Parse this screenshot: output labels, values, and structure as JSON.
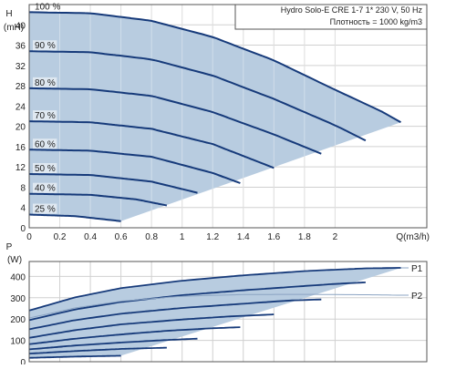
{
  "chart_data": [
    {
      "type": "line",
      "info": {
        "line1": "Hydro Solo-E CRE 1-7    1* 230 V, 50 Hz",
        "line2": "Плотность = 1000 kg/m3"
      },
      "ylabel_top": "H",
      "ylabel_unit": "(mH)",
      "xlabel": "Q(m3/h)",
      "xlim": [
        0,
        2.6
      ],
      "ylim": [
        0,
        44
      ],
      "x_ticks": [
        {
          "v": 0,
          "label": "0"
        },
        {
          "v": 0.2,
          "label": "0.2"
        },
        {
          "v": 0.4,
          "label": "0.4"
        },
        {
          "v": 0.6,
          "label": "0.6"
        },
        {
          "v": 0.8,
          "label": "0.8"
        },
        {
          "v": 1,
          "label": "1"
        },
        {
          "v": 1.2,
          "label": "1.2"
        },
        {
          "v": 1.4,
          "label": "1.4"
        },
        {
          "v": 1.6,
          "label": "1.6"
        },
        {
          "v": 1.8,
          "label": "1.8"
        },
        {
          "v": 2,
          "label": "2"
        }
      ],
      "y_ticks": [
        {
          "v": 0,
          "label": "0"
        },
        {
          "v": 4,
          "label": "4"
        },
        {
          "v": 8,
          "label": "8"
        },
        {
          "v": 12,
          "label": "12"
        },
        {
          "v": 16,
          "label": "16"
        },
        {
          "v": 20,
          "label": "20"
        },
        {
          "v": 24,
          "label": "24"
        },
        {
          "v": 28,
          "label": "28"
        },
        {
          "v": 32,
          "label": "32"
        },
        {
          "v": 36,
          "label": "36"
        },
        {
          "v": 40,
          "label": "40"
        }
      ],
      "grid": true,
      "series": [
        {
          "name": "100 %",
          "x": [
            0,
            0.4,
            0.8,
            1.2,
            1.6,
            2.0,
            2.3,
            2.43
          ],
          "y": [
            42.5,
            42.3,
            40.8,
            37.6,
            33.0,
            27.2,
            23.0,
            20.8
          ]
        },
        {
          "name": "90 %",
          "x": [
            0,
            0.4,
            0.8,
            1.2,
            1.6,
            2.0,
            2.2
          ],
          "y": [
            34.8,
            34.6,
            33.2,
            30.0,
            25.4,
            20.2,
            17.2
          ]
        },
        {
          "name": "80 %",
          "x": [
            0,
            0.4,
            0.8,
            1.2,
            1.6,
            1.91
          ],
          "y": [
            27.5,
            27.3,
            26.0,
            22.8,
            18.4,
            14.6
          ]
        },
        {
          "name": "70 %",
          "x": [
            0,
            0.4,
            0.8,
            1.2,
            1.6
          ],
          "y": [
            21.0,
            20.8,
            19.5,
            16.5,
            11.8
          ]
        },
        {
          "name": "60 %",
          "x": [
            0,
            0.4,
            0.8,
            1.2,
            1.38
          ],
          "y": [
            15.4,
            15.2,
            14.0,
            10.8,
            8.8
          ]
        },
        {
          "name": "50 %",
          "x": [
            0,
            0.4,
            0.8,
            1.1
          ],
          "y": [
            10.6,
            10.4,
            9.1,
            6.9
          ]
        },
        {
          "name": "40 %",
          "x": [
            0,
            0.4,
            0.7,
            0.9
          ],
          "y": [
            6.7,
            6.5,
            5.6,
            4.4
          ]
        },
        {
          "name": "25 %",
          "x": [
            0,
            0.3,
            0.6
          ],
          "y": [
            2.6,
            2.3,
            1.3
          ]
        }
      ]
    },
    {
      "type": "line",
      "ylabel_top": "P",
      "ylabel_unit": "(W)",
      "xlim": [
        0,
        2.6
      ],
      "ylim": [
        0,
        470
      ],
      "y_ticks": [
        {
          "v": 0,
          "label": "0"
        },
        {
          "v": 100,
          "label": "100"
        },
        {
          "v": 200,
          "label": "200"
        },
        {
          "v": 300,
          "label": "300"
        },
        {
          "v": 400,
          "label": "400"
        }
      ],
      "grid": true,
      "series": [
        {
          "name": "P1",
          "x": [
            0,
            0.3,
            0.6,
            1.0,
            1.4,
            1.8,
            2.2,
            2.43
          ],
          "y": [
            240,
            302,
            345,
            380,
            405,
            425,
            438,
            440
          ]
        },
        {
          "x": [
            0,
            0.3,
            0.6,
            1.0,
            1.4,
            1.8,
            2.0,
            2.2
          ],
          "y": [
            195,
            245,
            280,
            312,
            335,
            355,
            365,
            372
          ]
        },
        {
          "x": [
            0,
            0.3,
            0.6,
            1.0,
            1.4,
            1.7,
            1.91
          ],
          "y": [
            152,
            195,
            225,
            252,
            272,
            287,
            292
          ]
        },
        {
          "x": [
            0,
            0.3,
            0.6,
            1.0,
            1.3,
            1.6
          ],
          "y": [
            112,
            148,
            175,
            198,
            212,
            222
          ]
        },
        {
          "x": [
            0,
            0.3,
            0.6,
            0.9,
            1.2,
            1.38
          ],
          "y": [
            82,
            108,
            128,
            145,
            157,
            162
          ]
        },
        {
          "x": [
            0,
            0.3,
            0.6,
            0.9,
            1.1
          ],
          "y": [
            58,
            76,
            90,
            102,
            108
          ]
        },
        {
          "x": [
            0,
            0.3,
            0.6,
            0.9
          ],
          "y": [
            38,
            50,
            60,
            66
          ]
        },
        {
          "x": [
            0,
            0.3,
            0.6
          ],
          "y": [
            18,
            24,
            28
          ]
        },
        {
          "name": "P2",
          "x": [
            0,
            0.3,
            0.6,
            1.0,
            1.4,
            1.8,
            2.2,
            2.43
          ],
          "y": [
            205,
            252,
            284,
            307,
            315,
            316,
            314,
            312
          ]
        }
      ]
    }
  ]
}
